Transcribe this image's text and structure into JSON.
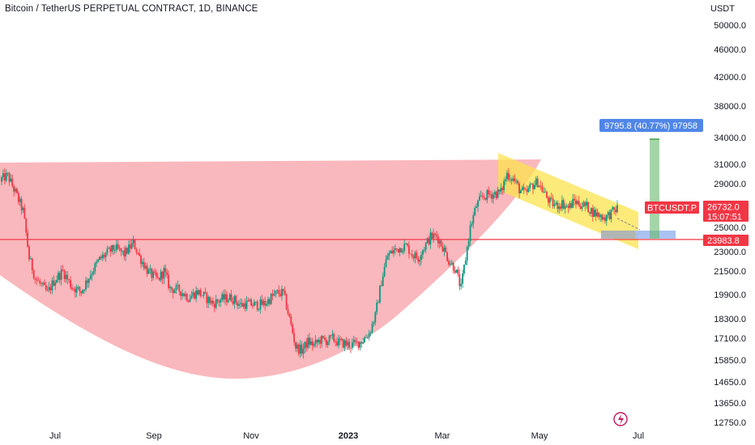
{
  "header": {
    "title": "Bitcoin / TetherUS PERPETUAL CONTRACT, 1D, BINANCE"
  },
  "chart_data": {
    "type": "candlestick",
    "symbol": "BTCUSDT.P",
    "currency": "USDT",
    "y_ticks": [
      "50000.0",
      "46000.0",
      "42000.0",
      "38000.0",
      "34000.0",
      "31000.0",
      "29000.0",
      "27000.0",
      "25000.0",
      "23000.0",
      "21500.0",
      "19900.0",
      "18300.0",
      "17100.0",
      "15850.0",
      "14650.0",
      "13650.0",
      "12750.0"
    ],
    "x_ticks": [
      {
        "label": "Jul",
        "bold": false
      },
      {
        "label": "Sep",
        "bold": false
      },
      {
        "label": "Nov",
        "bold": false
      },
      {
        "label": "2023",
        "bold": true
      },
      {
        "label": "Mar",
        "bold": false
      },
      {
        "label": "May",
        "bold": false
      },
      {
        "label": "Jul",
        "bold": false
      }
    ],
    "price_labels": {
      "symbol_tag": "BTCUSDT.P",
      "last_price": "26732.0",
      "countdown": "15:07:51",
      "support_level": "23983.8"
    },
    "projection_label": "9795.8 (40.77%) 97958",
    "support_line_price": 23983.8,
    "colors": {
      "up": "#089981",
      "down": "#f23645",
      "cup_fill": "#f7a4ab",
      "channel_fill": "#fbe34d",
      "projection": "#66bb6a",
      "projection_label_bg": "#4f86e8",
      "support_line": "#f23645",
      "axis_text": "#131722"
    },
    "candle_key_closes": [
      [
        0,
        29500
      ],
      [
        4,
        29800
      ],
      [
        8,
        28500
      ],
      [
        14,
        26500
      ],
      [
        18,
        22500
      ],
      [
        22,
        21000
      ],
      [
        26,
        20500
      ],
      [
        30,
        20000
      ],
      [
        34,
        20800
      ],
      [
        40,
        21500
      ],
      [
        46,
        20400
      ],
      [
        52,
        20100
      ],
      [
        58,
        21300
      ],
      [
        64,
        22400
      ],
      [
        70,
        23000
      ],
      [
        74,
        23300
      ],
      [
        80,
        22800
      ],
      [
        86,
        23700
      ],
      [
        90,
        22600
      ],
      [
        96,
        21400
      ],
      [
        102,
        20900
      ],
      [
        106,
        21500
      ],
      [
        110,
        20300
      ],
      [
        116,
        20200
      ],
      [
        122,
        19700
      ],
      [
        128,
        20100
      ],
      [
        132,
        19800
      ],
      [
        138,
        19300
      ],
      [
        144,
        19600
      ],
      [
        150,
        19700
      ],
      [
        156,
        19200
      ],
      [
        160,
        19300
      ],
      [
        166,
        19200
      ],
      [
        172,
        19300
      ],
      [
        176,
        19700
      ],
      [
        180,
        20000
      ],
      [
        184,
        20000
      ],
      [
        188,
        18300
      ],
      [
        192,
        16600
      ],
      [
        196,
        16400
      ],
      [
        200,
        16900
      ],
      [
        204,
        16700
      ],
      [
        208,
        17000
      ],
      [
        212,
        16950
      ],
      [
        216,
        17100
      ],
      [
        220,
        16850
      ],
      [
        224,
        16800
      ],
      [
        228,
        16700
      ],
      [
        232,
        16800
      ],
      [
        236,
        17000
      ],
      [
        240,
        17400
      ],
      [
        244,
        18500
      ],
      [
        248,
        20800
      ],
      [
        252,
        22700
      ],
      [
        256,
        23100
      ],
      [
        260,
        23300
      ],
      [
        264,
        23500
      ],
      [
        268,
        22800
      ],
      [
        272,
        22500
      ],
      [
        276,
        23400
      ],
      [
        280,
        24200
      ],
      [
        284,
        24300
      ],
      [
        288,
        23400
      ],
      [
        292,
        22300
      ],
      [
        296,
        21700
      ],
      [
        300,
        20300
      ],
      [
        303,
        22500
      ],
      [
        306,
        25000
      ],
      [
        310,
        27000
      ],
      [
        314,
        27800
      ],
      [
        318,
        28000
      ],
      [
        322,
        28100
      ],
      [
        326,
        28200
      ],
      [
        330,
        30000
      ],
      [
        334,
        29500
      ],
      [
        338,
        28500
      ],
      [
        342,
        28000
      ],
      [
        346,
        28800
      ],
      [
        350,
        29200
      ],
      [
        354,
        28200
      ],
      [
        358,
        27300
      ],
      [
        362,
        27000
      ],
      [
        366,
        27200
      ],
      [
        370,
        26800
      ],
      [
        374,
        27400
      ],
      [
        378,
        27100
      ],
      [
        382,
        26900
      ],
      [
        386,
        26400
      ],
      [
        390,
        26100
      ],
      [
        394,
        25900
      ],
      [
        398,
        26300
      ],
      [
        402,
        26732
      ]
    ]
  }
}
